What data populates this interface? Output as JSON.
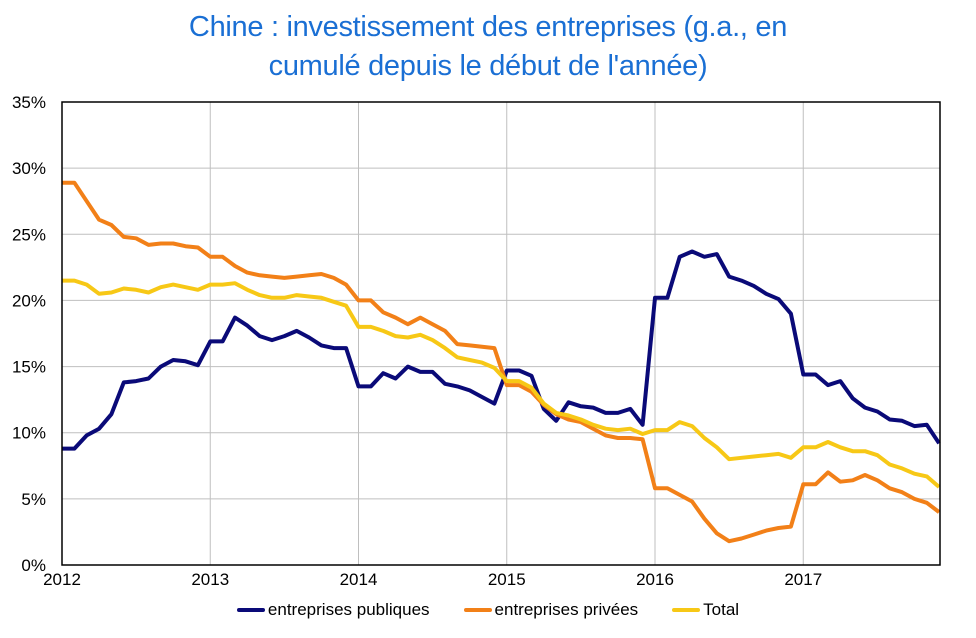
{
  "chart_data": {
    "type": "line",
    "title_lines": [
      "Chine : investissement des entreprises (g.a., en",
      "cumulé depuis le début de l'année)"
    ],
    "xlabel": "",
    "ylabel": "",
    "x_start": 2012,
    "x_end_months": 71,
    "xlim": [
      2012,
      2017.92
    ],
    "ylim": [
      0,
      35
    ],
    "grid": true,
    "legend_position": "bottom",
    "x_tick_labels": [
      "2012",
      "2013",
      "2014",
      "2015",
      "2016",
      "2017"
    ],
    "y_tick_labels": [
      "0%",
      "5%",
      "10%",
      "15%",
      "20%",
      "25%",
      "30%",
      "35%"
    ],
    "y_ticks": [
      0,
      5,
      10,
      15,
      20,
      25,
      30,
      35
    ],
    "series": [
      {
        "name": "entreprises publiques",
        "color": "#0a0a78",
        "values": [
          8.8,
          8.8,
          9.8,
          10.3,
          11.4,
          13.8,
          13.9,
          14.1,
          15.0,
          15.5,
          15.4,
          15.1,
          16.9,
          16.9,
          18.7,
          18.1,
          17.3,
          17.0,
          17.3,
          17.7,
          17.2,
          16.6,
          16.4,
          16.4,
          13.5,
          13.5,
          14.5,
          14.1,
          15.0,
          14.6,
          14.6,
          13.7,
          13.5,
          13.2,
          12.7,
          12.2,
          14.7,
          14.7,
          14.3,
          11.8,
          10.9,
          12.3,
          12.0,
          11.9,
          11.5,
          11.5,
          11.8,
          10.6,
          20.2,
          20.2,
          23.3,
          23.7,
          23.3,
          23.5,
          21.8,
          21.5,
          21.1,
          20.5,
          20.1,
          19.0,
          14.4,
          14.4,
          13.6,
          13.9,
          12.6,
          11.9,
          11.6,
          11.0,
          10.9,
          10.5,
          10.6,
          9.2
        ]
      },
      {
        "name": "entreprises privées",
        "color": "#f28018",
        "values": [
          28.9,
          28.9,
          27.5,
          26.1,
          25.7,
          24.8,
          24.7,
          24.2,
          24.3,
          24.3,
          24.1,
          24.0,
          23.3,
          23.3,
          22.6,
          22.1,
          21.9,
          21.8,
          21.7,
          21.8,
          21.9,
          22.0,
          21.7,
          21.2,
          20.0,
          20.0,
          19.1,
          18.7,
          18.2,
          18.7,
          18.2,
          17.7,
          16.7,
          16.6,
          16.5,
          16.4,
          13.6,
          13.6,
          13.1,
          12.1,
          11.4,
          11.0,
          10.8,
          10.3,
          9.8,
          9.6,
          9.6,
          9.5,
          5.8,
          5.8,
          5.3,
          4.8,
          3.5,
          2.4,
          1.8,
          2.0,
          2.3,
          2.6,
          2.8,
          2.9,
          6.1,
          6.1,
          7.0,
          6.3,
          6.4,
          6.8,
          6.4,
          5.8,
          5.5,
          5.0,
          4.7,
          4.0
        ]
      },
      {
        "name": "Total",
        "color": "#f7c816",
        "values": [
          21.5,
          21.5,
          21.2,
          20.5,
          20.6,
          20.9,
          20.8,
          20.6,
          21.0,
          21.2,
          21.0,
          20.8,
          21.2,
          21.2,
          21.3,
          20.8,
          20.4,
          20.2,
          20.2,
          20.4,
          20.3,
          20.2,
          19.9,
          19.6,
          18.0,
          18.0,
          17.7,
          17.3,
          17.2,
          17.4,
          17.0,
          16.4,
          15.7,
          15.5,
          15.3,
          14.9,
          13.9,
          13.9,
          13.4,
          12.2,
          11.5,
          11.3,
          11.0,
          10.6,
          10.3,
          10.2,
          10.3,
          9.9,
          10.2,
          10.2,
          10.8,
          10.5,
          9.6,
          8.9,
          8.0,
          8.1,
          8.2,
          8.3,
          8.4,
          8.1,
          8.9,
          8.9,
          9.3,
          8.9,
          8.6,
          8.6,
          8.3,
          7.6,
          7.3,
          6.9,
          6.7,
          5.9
        ]
      }
    ]
  }
}
